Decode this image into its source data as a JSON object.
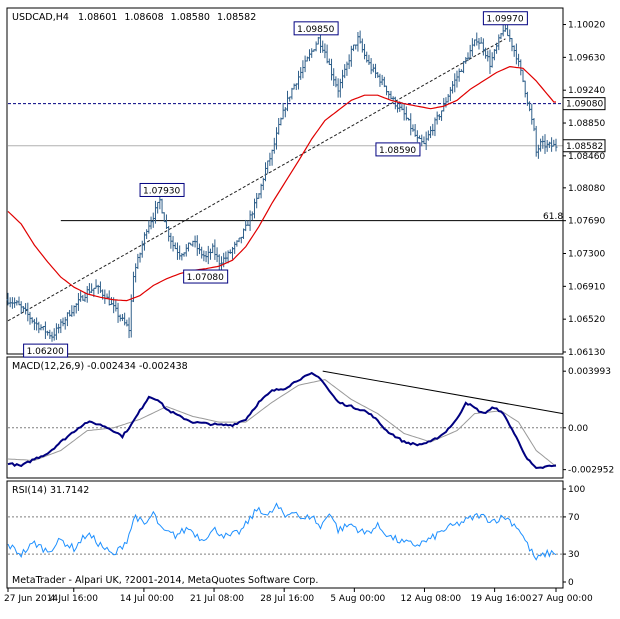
{
  "chart_data": [
    {
      "type": "candlestick",
      "symbol": "USDCAD,H4",
      "ohlc": [
        "1.08601",
        "1.08608",
        "1.08580",
        "1.08582"
      ],
      "ylim": [
        1.0613,
        1.1005
      ],
      "y_ticks": [
        "1.10020",
        "1.09630",
        "1.09240",
        "1.08850",
        "1.08460",
        "1.08080",
        "1.07690",
        "1.07300",
        "1.06910",
        "1.06520",
        "1.06130"
      ],
      "x_ticks": [
        "27 Jun 2014",
        "4 Jul 16:00",
        "14 Jul 00:00",
        "21 Jul 08:00",
        "28 Jul 16:00",
        "5 Aug 00:00",
        "12 Aug 08:00",
        "19 Aug 16:00",
        "27 Aug 00:00"
      ],
      "close_path": [
        [
          0,
          1.0675
        ],
        [
          4,
          1.067
        ],
        [
          8,
          1.066
        ],
        [
          12,
          1.0648
        ],
        [
          16,
          1.064
        ],
        [
          20,
          1.0632
        ],
        [
          24,
          1.0645
        ],
        [
          28,
          1.066
        ],
        [
          32,
          1.0672
        ],
        [
          36,
          1.0685
        ],
        [
          40,
          1.069
        ],
        [
          44,
          1.068
        ],
        [
          48,
          1.0665
        ],
        [
          52,
          1.065
        ],
        [
          55,
          1.064
        ],
        [
          57,
          1.0705
        ],
        [
          60,
          1.073
        ],
        [
          63,
          1.076
        ],
        [
          66,
          1.0775
        ],
        [
          69,
          1.0793
        ],
        [
          72,
          1.076
        ],
        [
          75,
          1.074
        ],
        [
          78,
          1.073
        ],
        [
          81,
          1.0735
        ],
        [
          84,
          1.0745
        ],
        [
          87,
          1.0732
        ],
        [
          90,
          1.0725
        ],
        [
          93,
          1.0735
        ],
        [
          96,
          1.072
        ],
        [
          99,
          1.0725
        ],
        [
          102,
          1.0735
        ],
        [
          105,
          1.0745
        ],
        [
          108,
          1.076
        ],
        [
          111,
          1.078
        ],
        [
          114,
          1.08
        ],
        [
          117,
          1.083
        ],
        [
          120,
          1.085
        ],
        [
          123,
          1.088
        ],
        [
          126,
          1.0905
        ],
        [
          129,
          1.0925
        ],
        [
          132,
          1.094
        ],
        [
          135,
          1.0955
        ],
        [
          138,
          1.097
        ],
        [
          141,
          1.0985
        ],
        [
          144,
          1.097
        ],
        [
          147,
          1.0945
        ],
        [
          150,
          1.0925
        ],
        [
          153,
          1.0945
        ],
        [
          156,
          1.097
        ],
        [
          159,
          1.0985
        ],
        [
          162,
          1.0965
        ],
        [
          165,
          1.095
        ],
        [
          168,
          1.094
        ],
        [
          171,
          1.093
        ],
        [
          174,
          1.0915
        ],
        [
          177,
          1.0905
        ],
        [
          180,
          1.0895
        ],
        [
          183,
          1.088
        ],
        [
          186,
          1.0865
        ],
        [
          189,
          1.0859
        ],
        [
          192,
          1.0875
        ],
        [
          195,
          1.089
        ],
        [
          198,
          1.0905
        ],
        [
          201,
          1.0925
        ],
        [
          204,
          1.094
        ],
        [
          207,
          1.0955
        ],
        [
          210,
          1.097
        ],
        [
          213,
          1.0985
        ],
        [
          216,
          1.0975
        ],
        [
          219,
          1.0955
        ],
        [
          222,
          1.0975
        ],
        [
          225,
          1.0997
        ],
        [
          228,
          1.0985
        ],
        [
          231,
          1.0965
        ],
        [
          234,
          1.0935
        ],
        [
          237,
          1.09
        ],
        [
          239,
          1.0875
        ],
        [
          240,
          1.085
        ],
        [
          242,
          1.086
        ],
        [
          245,
          1.0858
        ],
        [
          248,
          1.0858
        ]
      ],
      "ma_path": [
        [
          0,
          1.078
        ],
        [
          6,
          1.0765
        ],
        [
          12,
          1.074
        ],
        [
          18,
          1.072
        ],
        [
          24,
          1.0702
        ],
        [
          30,
          1.069
        ],
        [
          36,
          1.0682
        ],
        [
          42,
          1.0678
        ],
        [
          48,
          1.0675
        ],
        [
          54,
          1.0674
        ],
        [
          60,
          1.068
        ],
        [
          66,
          1.0692
        ],
        [
          72,
          1.07
        ],
        [
          78,
          1.0706
        ],
        [
          84,
          1.071
        ],
        [
          90,
          1.0712
        ],
        [
          96,
          1.0715
        ],
        [
          102,
          1.0722
        ],
        [
          108,
          1.0738
        ],
        [
          114,
          1.0762
        ],
        [
          120,
          1.079
        ],
        [
          126,
          1.0815
        ],
        [
          132,
          1.084
        ],
        [
          138,
          1.0866
        ],
        [
          144,
          1.0888
        ],
        [
          150,
          1.09
        ],
        [
          156,
          1.0912
        ],
        [
          162,
          1.0918
        ],
        [
          168,
          1.0918
        ],
        [
          174,
          1.0912
        ],
        [
          180,
          1.0908
        ],
        [
          186,
          1.0905
        ],
        [
          192,
          1.0902
        ],
        [
          198,
          1.0905
        ],
        [
          204,
          1.0912
        ],
        [
          210,
          1.0925
        ],
        [
          216,
          1.0935
        ],
        [
          222,
          1.0945
        ],
        [
          228,
          1.0952
        ],
        [
          234,
          1.095
        ],
        [
          240,
          1.0935
        ],
        [
          248,
          1.091
        ]
      ],
      "annotations": [
        {
          "label": "1.06200",
          "x": 8,
          "y": 1.062
        },
        {
          "label": "1.07930",
          "x": 70,
          "y": 1.0793
        },
        {
          "label": "1.07080",
          "x": 78,
          "y": 1.0708
        },
        {
          "label": "1.09850",
          "x": 140,
          "y": 1.0985
        },
        {
          "label": "1.08590",
          "x": 189,
          "y": 1.0859
        },
        {
          "label": "1.09970",
          "x": 226,
          "y": 1.0997
        }
      ],
      "price_tags": [
        {
          "label": "1.09080",
          "value": 1.0908
        },
        {
          "label": "1.08582",
          "value": 1.0858
        }
      ],
      "fib_label": "61.8",
      "fib_level": 1.0769
    },
    {
      "type": "line",
      "title": "MACD(12,26,9) -0.002434 -0.002438",
      "y_ticks": [
        "0.003993",
        "0.00",
        "-0.002952"
      ],
      "ylim": [
        -0.0034,
        0.0045
      ],
      "macd_path": [
        [
          0,
          -0.0025
        ],
        [
          6,
          -0.0027
        ],
        [
          12,
          -0.0022
        ],
        [
          18,
          -0.0018
        ],
        [
          24,
          -0.001
        ],
        [
          28,
          -0.0005
        ],
        [
          32,
          0.0
        ],
        [
          36,
          0.0004
        ],
        [
          40,
          0.0003
        ],
        [
          44,
          0.0001
        ],
        [
          48,
          -0.0002
        ],
        [
          52,
          -0.0006
        ],
        [
          56,
          0.0002
        ],
        [
          60,
          0.0012
        ],
        [
          64,
          0.0022
        ],
        [
          68,
          0.002
        ],
        [
          72,
          0.0013
        ],
        [
          78,
          0.0008
        ],
        [
          84,
          0.0004
        ],
        [
          90,
          0.0003
        ],
        [
          96,
          0.0002
        ],
        [
          102,
          0.0002
        ],
        [
          108,
          0.0006
        ],
        [
          114,
          0.0018
        ],
        [
          120,
          0.0026
        ],
        [
          126,
          0.0028
        ],
        [
          132,
          0.0034
        ],
        [
          138,
          0.0038
        ],
        [
          142,
          0.0035
        ],
        [
          146,
          0.0026
        ],
        [
          150,
          0.0018
        ],
        [
          156,
          0.0015
        ],
        [
          162,
          0.0012
        ],
        [
          166,
          0.0008
        ],
        [
          172,
          -0.0002
        ],
        [
          176,
          -0.0006
        ],
        [
          180,
          -0.001
        ],
        [
          186,
          -0.0012
        ],
        [
          192,
          -0.001
        ],
        [
          198,
          -0.0004
        ],
        [
          204,
          0.0006
        ],
        [
          208,
          0.0018
        ],
        [
          212,
          0.0014
        ],
        [
          216,
          0.001
        ],
        [
          220,
          0.0014
        ],
        [
          224,
          0.0012
        ],
        [
          228,
          0.0002
        ],
        [
          232,
          -0.001
        ],
        [
          236,
          -0.0022
        ],
        [
          240,
          -0.0029
        ],
        [
          246,
          -0.0027
        ]
      ],
      "signal_path": [
        [
          0,
          -0.0022
        ],
        [
          12,
          -0.0023
        ],
        [
          24,
          -0.0016
        ],
        [
          36,
          -0.0002
        ],
        [
          48,
          0.0
        ],
        [
          60,
          0.0006
        ],
        [
          72,
          0.0015
        ],
        [
          84,
          0.0008
        ],
        [
          96,
          0.0004
        ],
        [
          108,
          0.0004
        ],
        [
          120,
          0.0018
        ],
        [
          132,
          0.003
        ],
        [
          144,
          0.0034
        ],
        [
          156,
          0.002
        ],
        [
          168,
          0.001
        ],
        [
          180,
          -0.0004
        ],
        [
          192,
          -0.001
        ],
        [
          204,
          -0.0002
        ],
        [
          212,
          0.001
        ],
        [
          224,
          0.0012
        ],
        [
          232,
          0.0004
        ],
        [
          240,
          -0.0016
        ],
        [
          248,
          -0.0026
        ]
      ],
      "trendline": [
        [
          143,
          0.004
        ],
        [
          248,
          0.001
        ]
      ]
    },
    {
      "type": "line",
      "title": "RSI(14) 31.7142",
      "y_ticks": [
        "100",
        "70",
        "30",
        "0"
      ],
      "ylim": [
        0,
        100
      ],
      "rsi_path": [
        [
          0,
          40
        ],
        [
          6,
          30
        ],
        [
          12,
          42
        ],
        [
          18,
          33
        ],
        [
          24,
          45
        ],
        [
          30,
          36
        ],
        [
          36,
          52
        ],
        [
          42,
          40
        ],
        [
          48,
          28
        ],
        [
          54,
          45
        ],
        [
          58,
          72
        ],
        [
          62,
          60
        ],
        [
          66,
          74
        ],
        [
          70,
          55
        ],
        [
          76,
          50
        ],
        [
          82,
          58
        ],
        [
          88,
          46
        ],
        [
          94,
          56
        ],
        [
          100,
          48
        ],
        [
          106,
          55
        ],
        [
          110,
          68
        ],
        [
          114,
          80
        ],
        [
          118,
          70
        ],
        [
          122,
          82
        ],
        [
          126,
          70
        ],
        [
          130,
          78
        ],
        [
          134,
          66
        ],
        [
          138,
          72
        ],
        [
          142,
          58
        ],
        [
          146,
          76
        ],
        [
          150,
          56
        ],
        [
          156,
          62
        ],
        [
          162,
          52
        ],
        [
          168,
          60
        ],
        [
          174,
          48
        ],
        [
          180,
          42
        ],
        [
          186,
          40
        ],
        [
          192,
          46
        ],
        [
          198,
          56
        ],
        [
          204,
          62
        ],
        [
          210,
          68
        ],
        [
          214,
          72
        ],
        [
          220,
          66
        ],
        [
          226,
          70
        ],
        [
          232,
          58
        ],
        [
          236,
          40
        ],
        [
          240,
          24
        ],
        [
          244,
          30
        ],
        [
          248,
          31.7
        ]
      ]
    }
  ],
  "footer": "MetaTrader - Alpari UK, ?2001-2014, MetaQuotes Software Corp.",
  "colors": {
    "candle": "#2f5f8a",
    "ma": "#e00000",
    "fib": "#000000",
    "dotted_level": "#000080",
    "macd": "#000080",
    "signal": "#9a9a9a",
    "rsi": "#1e90ff",
    "grid_dots": "#7f7f7f"
  }
}
